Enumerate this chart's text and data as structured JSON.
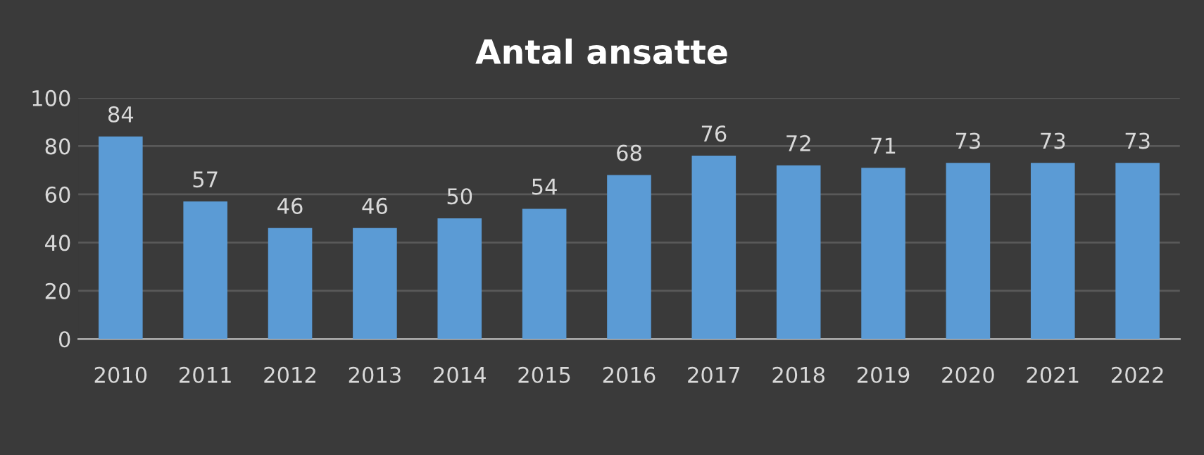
{
  "chart_data": {
    "type": "bar",
    "title": "Antal ansatte",
    "categories": [
      "2010",
      "2011",
      "2012",
      "2013",
      "2014",
      "2015",
      "2016",
      "2017",
      "2018",
      "2019",
      "2020",
      "2021",
      "2022"
    ],
    "values": [
      84,
      57,
      46,
      46,
      50,
      54,
      68,
      76,
      72,
      71,
      73,
      73,
      73
    ],
    "color": "#5b9bd5",
    "ylim": [
      0,
      100
    ],
    "yticks": [
      0,
      20,
      40,
      60,
      80,
      100
    ],
    "grid": "y",
    "data_labels": true
  }
}
